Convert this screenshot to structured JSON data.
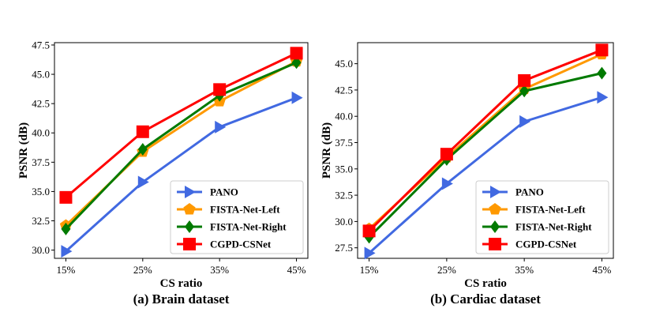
{
  "chart_data": [
    {
      "type": "line",
      "caption": "(a) Brain dataset",
      "xlabel": "CS ratio",
      "ylabel": "PSNR (dB)",
      "categories": [
        "15%",
        "25%",
        "35%",
        "45%"
      ],
      "ylim": [
        29.3,
        47.7
      ],
      "yticks": [
        30.0,
        32.5,
        35.0,
        37.5,
        40.0,
        42.5,
        45.0,
        47.5
      ],
      "ytick_labels": [
        "30.0",
        "32.5",
        "35.0",
        "37.5",
        "40.0",
        "42.5",
        "45.0",
        "47.5"
      ],
      "legend_position": "lower-right",
      "series": [
        {
          "name": "PANO",
          "color": "#4169e1",
          "marker": "triangle-right",
          "values": [
            29.9,
            35.8,
            40.5,
            43.0
          ]
        },
        {
          "name": "FISTA-Net-Left",
          "color": "#ff9900",
          "marker": "pentagon",
          "values": [
            32.1,
            38.4,
            42.7,
            46.1
          ]
        },
        {
          "name": "FISTA-Net-Right",
          "color": "#007a00",
          "marker": "diamond",
          "values": [
            31.8,
            38.6,
            43.2,
            46.0
          ]
        },
        {
          "name": "CGPD-CSNet",
          "color": "#ff0000",
          "marker": "square",
          "values": [
            34.5,
            40.1,
            43.7,
            46.8
          ]
        }
      ]
    },
    {
      "type": "line",
      "caption": "(b) Cardiac dataset",
      "xlabel": "CS ratio",
      "ylabel": "PSNR (dB)",
      "categories": [
        "15%",
        "25%",
        "35%",
        "45%"
      ],
      "ylim": [
        26.5,
        47.0
      ],
      "yticks": [
        27.5,
        30.0,
        32.5,
        35.0,
        37.5,
        40.0,
        42.5,
        45.0
      ],
      "ytick_labels": [
        "27.5",
        "30.0",
        "32.5",
        "35.0",
        "37.5",
        "40.0",
        "42.5",
        "45.0"
      ],
      "legend_position": "lower-right",
      "series": [
        {
          "name": "PANO",
          "color": "#4169e1",
          "marker": "triangle-right",
          "values": [
            27.0,
            33.6,
            39.5,
            41.8
          ]
        },
        {
          "name": "FISTA-Net-Left",
          "color": "#ff9900",
          "marker": "pentagon",
          "values": [
            29.3,
            36.1,
            42.6,
            45.9
          ]
        },
        {
          "name": "FISTA-Net-Right",
          "color": "#007a00",
          "marker": "diamond",
          "values": [
            28.5,
            35.9,
            42.4,
            44.1
          ]
        },
        {
          "name": "CGPD-CSNet",
          "color": "#ff0000",
          "marker": "square",
          "values": [
            29.1,
            36.4,
            43.4,
            46.3
          ]
        }
      ]
    }
  ]
}
